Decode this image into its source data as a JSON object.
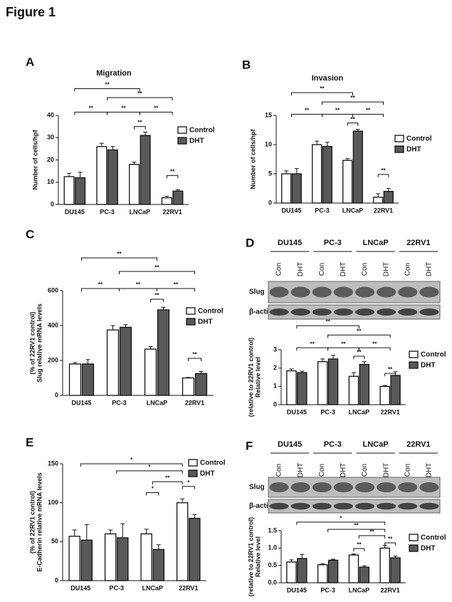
{
  "title": "Figure 1",
  "chart_data": [
    {
      "type": "bar",
      "panel": "A",
      "title": "Migration",
      "ylabel": [
        "Number of cells/hpf"
      ],
      "categories": [
        "DU145",
        "PC-3",
        "LNCaP",
        "22RV1"
      ],
      "series": [
        {
          "name": "Control",
          "color": "#ffffff",
          "values": [
            12.5,
            26,
            18,
            3
          ],
          "errors": [
            1.5,
            1.5,
            1,
            0.7
          ]
        },
        {
          "name": "DHT",
          "color": "#595959",
          "values": [
            12,
            24.5,
            31,
            6
          ],
          "errors": [
            2.5,
            1.5,
            1.5,
            0.6
          ]
        }
      ],
      "ylim": [
        0,
        40
      ],
      "yticks": [
        0,
        10,
        20,
        30,
        40
      ],
      "legend": "right",
      "annotations": [
        "**",
        "**",
        "**",
        "**",
        "**",
        "**",
        "**"
      ]
    },
    {
      "type": "bar",
      "panel": "B",
      "title": "Invasion",
      "ylabel": [
        "Number of cells/hpf"
      ],
      "categories": [
        "DU145",
        "PC-3",
        "LNCaP",
        "22RV1"
      ],
      "series": [
        {
          "name": "Control",
          "color": "#ffffff",
          "values": [
            5,
            10,
            7.3,
            1
          ],
          "errors": [
            0.5,
            0.6,
            0.3,
            0.6
          ]
        },
        {
          "name": "DHT",
          "color": "#595959",
          "values": [
            5,
            9.7,
            12.3,
            2
          ],
          "errors": [
            0.9,
            0.7,
            0.3,
            0.5
          ]
        }
      ],
      "ylim": [
        0,
        15
      ],
      "yticks": [
        0,
        5,
        10,
        15
      ],
      "legend": "right",
      "annotations": [
        "**",
        "**",
        "**",
        "**",
        "**",
        "**",
        "**"
      ]
    },
    {
      "type": "bar",
      "panel": "C",
      "ylabel": [
        "Slug relative mRNA levels",
        "(% of 22RV1 control)"
      ],
      "categories": [
        "DU145",
        "PC-3",
        "LNCaP",
        "22RV1"
      ],
      "series": [
        {
          "name": "Control",
          "color": "#ffffff",
          "values": [
            180,
            375,
            265,
            100
          ],
          "errors": [
            8,
            25,
            15,
            3
          ]
        },
        {
          "name": "DHT",
          "color": "#595959",
          "values": [
            180,
            390,
            490,
            125
          ],
          "errors": [
            25,
            15,
            15,
            12
          ]
        }
      ],
      "ylim": [
        0,
        600
      ],
      "yticks": [
        0,
        200,
        400,
        600
      ],
      "legend": "right",
      "annotations": [
        "**",
        "**",
        "**",
        "**",
        "**",
        "**",
        "**"
      ]
    },
    {
      "type": "bar",
      "panel": "D",
      "ylabel": [
        "Relative level",
        "(relative to 22RV1 control)"
      ],
      "blot": {
        "groups": [
          "DU145",
          "PC-3",
          "LNCaP",
          "22RV1"
        ],
        "lanes": [
          "Con",
          "DHT",
          "Con",
          "DHT",
          "Con",
          "DHT",
          "Con",
          "DHT"
        ],
        "rows": [
          "Slug",
          "β-actin"
        ]
      },
      "categories": [
        "DU145",
        "PC-3",
        "LNCaP",
        "22RV1"
      ],
      "series": [
        {
          "name": "Control",
          "color": "#ffffff",
          "values": [
            1.85,
            2.35,
            1.55,
            1.0
          ],
          "errors": [
            0.1,
            0.15,
            0.2,
            0.05
          ]
        },
        {
          "name": "DHT",
          "color": "#595959",
          "values": [
            1.75,
            2.5,
            2.2,
            1.6
          ],
          "errors": [
            0.08,
            0.2,
            0.15,
            0.2
          ]
        }
      ],
      "ylim": [
        0,
        3
      ],
      "yticks": [
        0,
        1,
        2,
        3
      ],
      "legend": "right",
      "annotations": [
        "**",
        "**",
        "**",
        "**",
        "**",
        "**",
        "**"
      ]
    },
    {
      "type": "bar",
      "panel": "E",
      "ylabel": [
        "E-Cadherin relative mRNA levels",
        "(% of 22RV1 control)"
      ],
      "categories": [
        "DU145",
        "PC-3",
        "LNCaP",
        "22RV1"
      ],
      "series": [
        {
          "name": "Control",
          "color": "#ffffff",
          "values": [
            57,
            60,
            60,
            100
          ],
          "errors": [
            8,
            5,
            6,
            5
          ]
        },
        {
          "name": "DHT",
          "color": "#595959",
          "values": [
            52,
            55,
            40,
            80
          ],
          "errors": [
            20,
            18,
            6,
            5
          ]
        }
      ],
      "ylim": [
        0,
        150
      ],
      "yticks": [
        0,
        50,
        100,
        150
      ],
      "legend": "right",
      "annotations": [
        "*",
        "*",
        "**",
        "*",
        "*"
      ]
    },
    {
      "type": "bar",
      "panel": "F",
      "ylabel": [
        "Relative level",
        "(relative to 22RV1 control)"
      ],
      "blot": {
        "groups": [
          "DU145",
          "PC-3",
          "LNCaP",
          "22RV1"
        ],
        "lanes": [
          "Con",
          "DHT",
          "Con",
          "DHT",
          "Con",
          "DHT",
          "Con",
          "DHT"
        ],
        "rows": [
          "Slug",
          "β-actin"
        ]
      },
      "categories": [
        "DU145",
        "PC-3",
        "LNCaP",
        "22RV1"
      ],
      "series": [
        {
          "name": "Control",
          "color": "#ffffff",
          "values": [
            0.6,
            0.52,
            0.8,
            1.0
          ],
          "errors": [
            0.06,
            0.03,
            0.03,
            0.08
          ]
        },
        {
          "name": "DHT",
          "color": "#595959",
          "values": [
            0.7,
            0.65,
            0.45,
            0.72
          ],
          "errors": [
            0.12,
            0.03,
            0.04,
            0.05
          ]
        }
      ],
      "ylim": [
        0,
        1.5
      ],
      "yticks": [
        {
          "value": 0,
          "label": "0.0"
        },
        {
          "value": 0.5,
          "label": "0.5"
        },
        {
          "value": 1,
          "label": "1.0"
        },
        {
          "value": 1.5,
          "label": "1.5"
        }
      ],
      "legend": "right",
      "annotations": [
        "*",
        "**",
        "**",
        "**",
        "**"
      ]
    }
  ]
}
